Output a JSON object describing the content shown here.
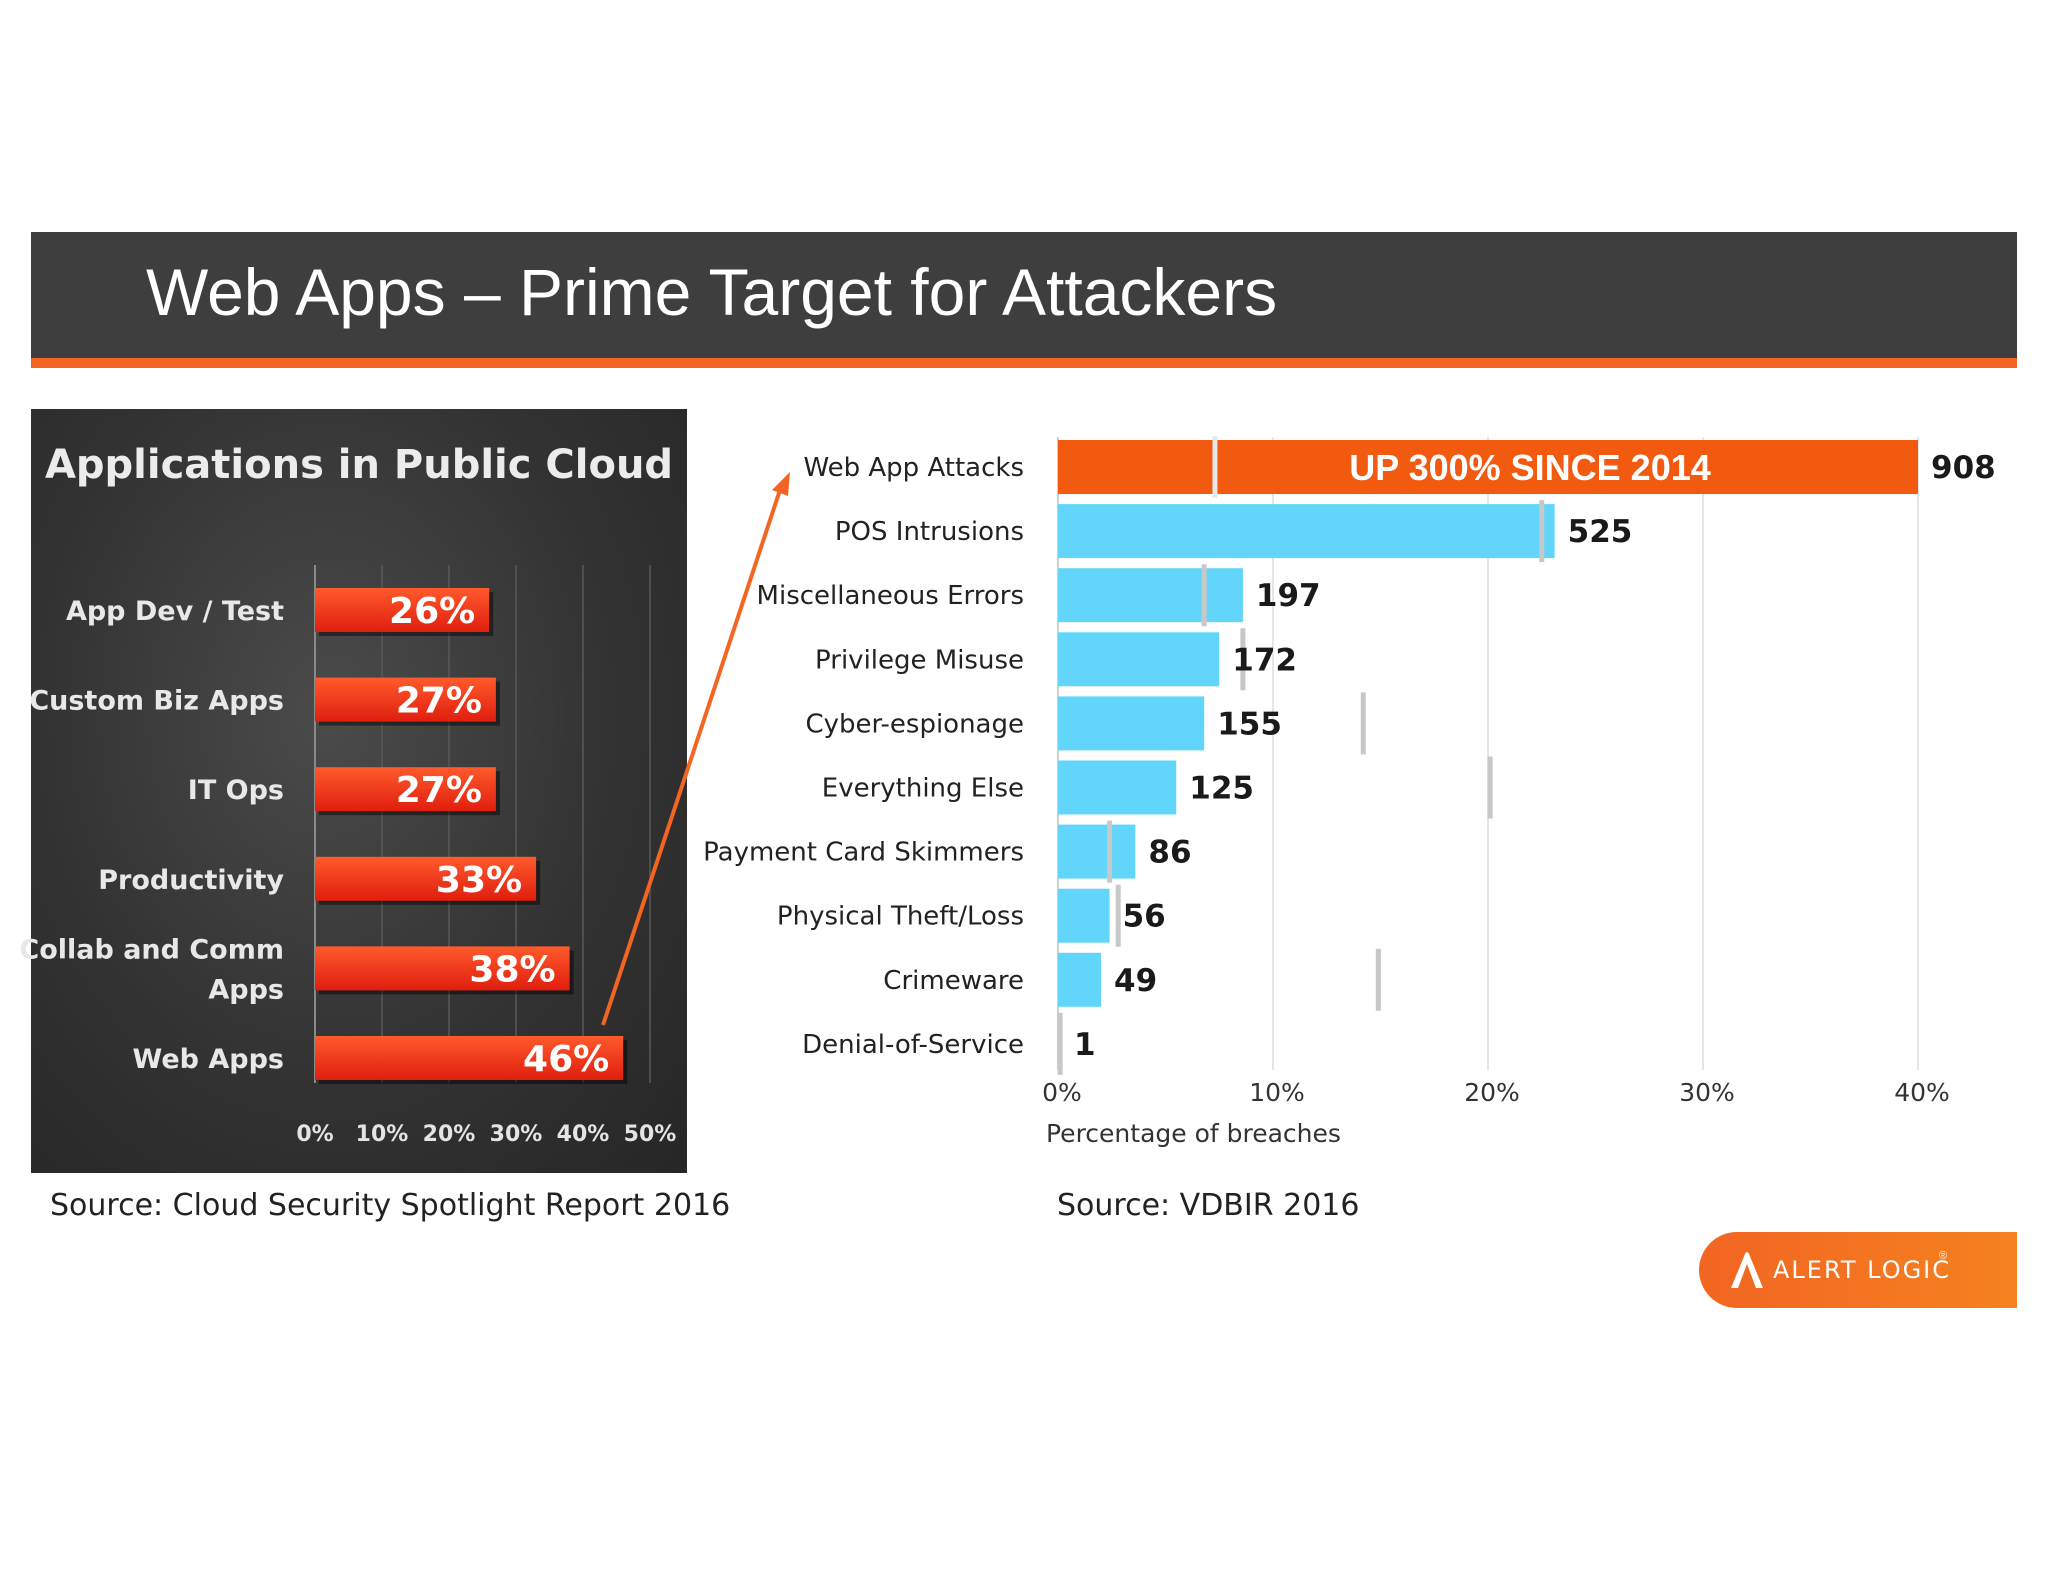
{
  "slide": {
    "title": "Web Apps – Prime Target for Attackers",
    "source_left": "Source: Cloud Security Spotlight Report 2016",
    "source_right": "Source: VDBIR 2016",
    "logo_text": "ALERT LOGIC",
    "logo_mark": "®",
    "colors": {
      "header_bg": "#3e3e3e",
      "accent": "#f26522",
      "bar_blue": "#62d6fa",
      "bar_red": "#f03a1a"
    }
  },
  "chart_data": [
    {
      "type": "bar",
      "orientation": "horizontal",
      "title": "Applications in Public Cloud",
      "categories": [
        "App Dev / Test",
        "Custom Biz Apps",
        "IT Ops",
        "Productivity",
        "Collab and Comm Apps",
        "Web Apps"
      ],
      "values": [
        26,
        27,
        27,
        33,
        38,
        46
      ],
      "value_labels": [
        "26%",
        "27%",
        "27%",
        "33%",
        "38%",
        "46%"
      ],
      "xlim": [
        0,
        50
      ],
      "xticks": [
        "0%",
        "10%",
        "20%",
        "30%",
        "40%",
        "50%"
      ],
      "grid": true
    },
    {
      "type": "bar",
      "orientation": "horizontal",
      "categories": [
        "Web App Attacks",
        "POS Intrusions",
        "Miscellaneous Errors",
        "Privilege Misuse",
        "Cyber-espionage",
        "Everything Else",
        "Payment Card Skimmers",
        "Physical Theft/Loss",
        "Crimeware",
        "Denial-of-Service"
      ],
      "counts": [
        908,
        525,
        197,
        172,
        155,
        125,
        86,
        56,
        49,
        1
      ],
      "values": [
        40.0,
        23.1,
        8.6,
        7.5,
        6.8,
        5.5,
        3.6,
        2.4,
        2.0,
        0.05
      ],
      "reference_markers": [
        7.3,
        22.5,
        6.8,
        8.6,
        14.2,
        20.1,
        2.4,
        2.8,
        14.9,
        0.1
      ],
      "highlight": {
        "category": "Web App Attacks",
        "label": "UP 300% SINCE 2014"
      },
      "xlim": [
        0,
        40
      ],
      "xticks": [
        "0%",
        "10%",
        "20%",
        "30%",
        "40%"
      ],
      "xlabel": "Percentage of breaches",
      "grid": true
    }
  ]
}
